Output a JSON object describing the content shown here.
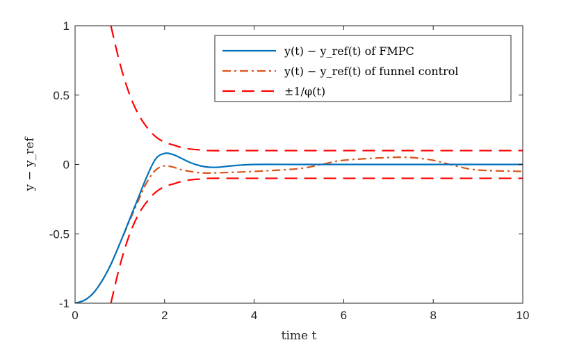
{
  "chart_data": {
    "type": "line",
    "xlabel": "time t",
    "ylabel": "y − y_ref",
    "xlim": [
      0,
      10
    ],
    "ylim": [
      -1,
      1
    ],
    "xticks": [
      "0",
      "2",
      "4",
      "6",
      "8",
      "10"
    ],
    "yticks": [
      "-1",
      "-0.5",
      "0",
      "0.5",
      "1"
    ],
    "grid": false,
    "legend_position": "top-right",
    "series": [
      {
        "name": "y(t) − y_ref(t) of FMPC",
        "color": "#0072BD",
        "style": "solid",
        "x": [
          0,
          0.2,
          0.4,
          0.6,
          0.8,
          1.0,
          1.2,
          1.4,
          1.6,
          1.8,
          2.0,
          2.2,
          2.4,
          2.6,
          2.8,
          3.0,
          3.2,
          3.5,
          4,
          5,
          6,
          7,
          8,
          9,
          10
        ],
        "y": [
          -1,
          -0.98,
          -0.93,
          -0.84,
          -0.72,
          -0.57,
          -0.41,
          -0.25,
          -0.09,
          0.04,
          0.08,
          0.07,
          0.04,
          0.01,
          -0.01,
          -0.02,
          -0.02,
          -0.01,
          0,
          0,
          0,
          0,
          0,
          0,
          0
        ]
      },
      {
        "name": "y(t) − y_ref(t) of funnel control",
        "color": "#D95319",
        "style": "dashdot",
        "x": [
          0,
          0.2,
          0.4,
          0.6,
          0.8,
          1.0,
          1.2,
          1.4,
          1.6,
          1.8,
          2.0,
          2.2,
          2.4,
          2.8,
          3.2,
          4,
          5,
          5.5,
          6,
          7,
          7.5,
          8,
          8.5,
          9,
          10
        ],
        "y": [
          -1,
          -0.98,
          -0.93,
          -0.84,
          -0.72,
          -0.57,
          -0.42,
          -0.27,
          -0.13,
          -0.04,
          -0.01,
          -0.02,
          -0.04,
          -0.06,
          -0.06,
          -0.05,
          -0.03,
          0,
          0.03,
          0.05,
          0.05,
          0.03,
          -0.01,
          -0.04,
          -0.05
        ]
      },
      {
        "name": "±1/φ(t)",
        "color": "#FF0000",
        "style": "dashed",
        "x": [
          0.8,
          1.0,
          1.2,
          1.4,
          1.6,
          1.8,
          2.0,
          2.2,
          2.4,
          2.6,
          2.8,
          3.0,
          3.5,
          4,
          5,
          6,
          7,
          8,
          9,
          10
        ],
        "y": [
          1.0,
          0.73,
          0.52,
          0.37,
          0.27,
          0.2,
          0.16,
          0.14,
          0.12,
          0.11,
          0.105,
          0.1,
          0.1,
          0.1,
          0.1,
          0.1,
          0.1,
          0.1,
          0.1,
          0.1
        ],
        "mirrored": true
      }
    ]
  }
}
